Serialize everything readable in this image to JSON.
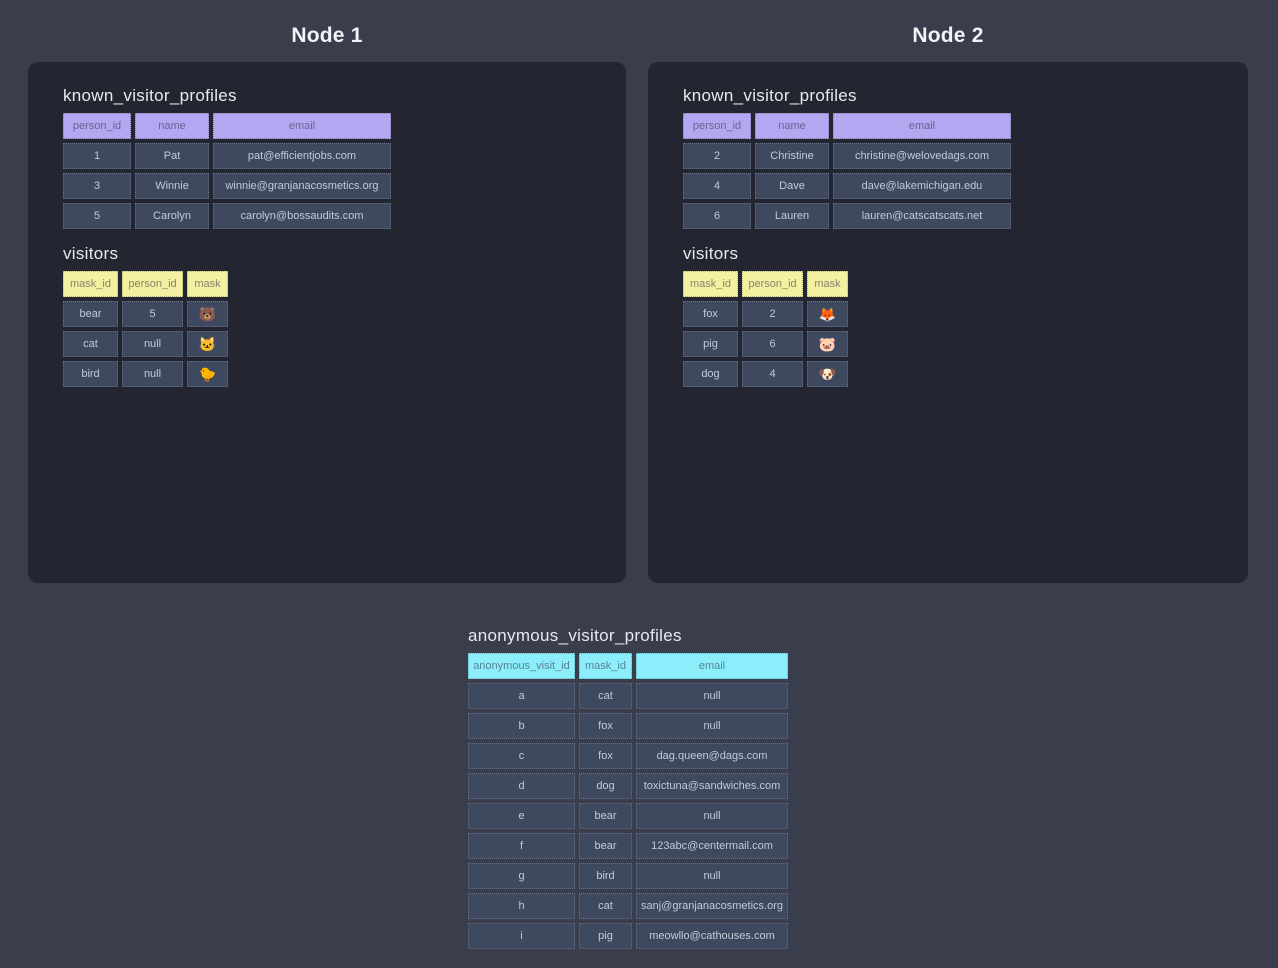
{
  "page": {
    "background": "#3a3d4b",
    "panel_background": "#232531",
    "cell_background": "#3e4960"
  },
  "colors": {
    "purple_header": "#b4a7f1",
    "yellow_header": "#f4f0a2",
    "cyan_header": "#8deefb"
  },
  "nodes": [
    {
      "title": "Node 1",
      "tables": [
        {
          "name": "known_visitor_profiles",
          "columns": [
            "person_id",
            "name",
            "email"
          ],
          "rows": [
            [
              "1",
              "Pat",
              "pat@efficientjobs.com"
            ],
            [
              "3",
              "Winnie",
              "winnie@granjanacosmetics.org"
            ],
            [
              "5",
              "Carolyn",
              "carolyn@bossaudits.com"
            ]
          ]
        },
        {
          "name": "visitors",
          "columns": [
            "mask_id",
            "person_id",
            "mask"
          ],
          "rows": [
            [
              "bear",
              "5",
              "🐻"
            ],
            [
              "cat",
              "null",
              "🐱"
            ],
            [
              "bird",
              "null",
              "🐤"
            ]
          ]
        }
      ]
    },
    {
      "title": "Node 2",
      "tables": [
        {
          "name": "known_visitor_profiles",
          "columns": [
            "person_id",
            "name",
            "email"
          ],
          "rows": [
            [
              "2",
              "Christine",
              "christine@welovedags.com"
            ],
            [
              "4",
              "Dave",
              "dave@lakemichigan.edu"
            ],
            [
              "6",
              "Lauren",
              "lauren@catscatscats.net"
            ]
          ]
        },
        {
          "name": "visitors",
          "columns": [
            "mask_id",
            "person_id",
            "mask"
          ],
          "rows": [
            [
              "fox",
              "2",
              "🦊"
            ],
            [
              "pig",
              "6",
              "🐷"
            ],
            [
              "dog",
              "4",
              "🐶"
            ]
          ]
        }
      ]
    }
  ],
  "bottom_table": {
    "name": "anonymous_visitor_profiles",
    "columns": [
      "anonymous_visit_id",
      "mask_id",
      "email"
    ],
    "rows": [
      [
        "a",
        "cat",
        "null"
      ],
      [
        "b",
        "fox",
        "null"
      ],
      [
        "c",
        "fox",
        "dag.queen@dags.com"
      ],
      [
        "d",
        "dog",
        "toxictuna@sandwiches.com"
      ],
      [
        "e",
        "bear",
        "null"
      ],
      [
        "f",
        "bear",
        "123abc@centermail.com"
      ],
      [
        "g",
        "bird",
        "null"
      ],
      [
        "h",
        "cat",
        "sanj@granjanacosmetics.org"
      ],
      [
        "i",
        "pig",
        "meowllo@cathouses.com"
      ]
    ]
  }
}
